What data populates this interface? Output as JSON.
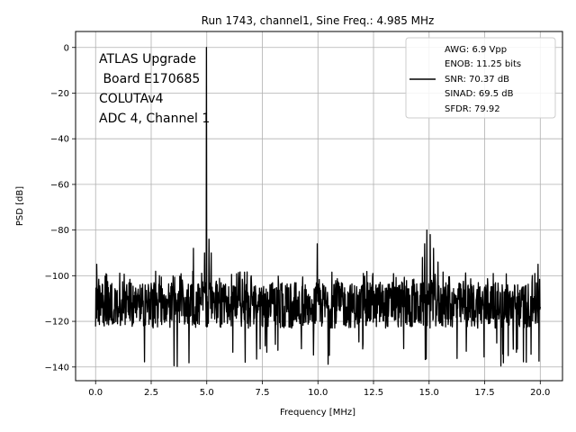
{
  "chart_data": {
    "type": "line",
    "title": "Run 1743, channel1, Sine Freq.: 4.985 MHz",
    "xlabel": "Frequency [MHz]",
    "ylabel": "PSD [dB]",
    "xlim": [
      -0.9,
      21.0
    ],
    "ylim": [
      -146.0,
      7.0
    ],
    "xticks": [
      0.0,
      2.5,
      5.0,
      7.5,
      10.0,
      12.5,
      15.0,
      17.5,
      20.0
    ],
    "xtick_labels": [
      "0.0",
      "2.5",
      "5.0",
      "7.5",
      "10.0",
      "12.5",
      "15.0",
      "17.5",
      "20.0"
    ],
    "yticks": [
      0,
      -20,
      -40,
      -60,
      -80,
      -100,
      -120,
      -140
    ],
    "ytick_labels": [
      "0",
      "−20",
      "−40",
      "−60",
      "−80",
      "−100",
      "−120",
      "−140"
    ],
    "grid": true,
    "legend_position": "top-right",
    "line_color": "#000000",
    "annotation_lines": [
      "ATLAS Upgrade",
      " Board E170685",
      "COLUTAv4",
      "ADC 4, Channel 1"
    ],
    "legend_lines": [
      "AWG: 6.9 Vpp",
      "ENOB: 11.25 bits",
      "SNR: 70.37 dB",
      "SINAD: 69.5 dB",
      "SFDR: 79.92"
    ],
    "series": [
      {
        "noise_floor_db": -113,
        "noise_min_db": -140,
        "noise_max_db": -98,
        "x_range_mhz": [
          0.0,
          20.0
        ],
        "peaks": [
          {
            "x": 4.985,
            "y": 0
          },
          {
            "x": 4.9,
            "y": -90
          },
          {
            "x": 5.1,
            "y": -84
          },
          {
            "x": 5.2,
            "y": -90
          },
          {
            "x": 4.4,
            "y": -88
          },
          {
            "x": 9.97,
            "y": -86
          },
          {
            "x": 14.7,
            "y": -92
          },
          {
            "x": 14.8,
            "y": -86
          },
          {
            "x": 14.9,
            "y": -80
          },
          {
            "x": 15.05,
            "y": -82
          },
          {
            "x": 15.2,
            "y": -88
          },
          {
            "x": 15.4,
            "y": -94
          },
          {
            "x": 0.05,
            "y": -95
          },
          {
            "x": 19.9,
            "y": -95
          }
        ]
      }
    ]
  }
}
